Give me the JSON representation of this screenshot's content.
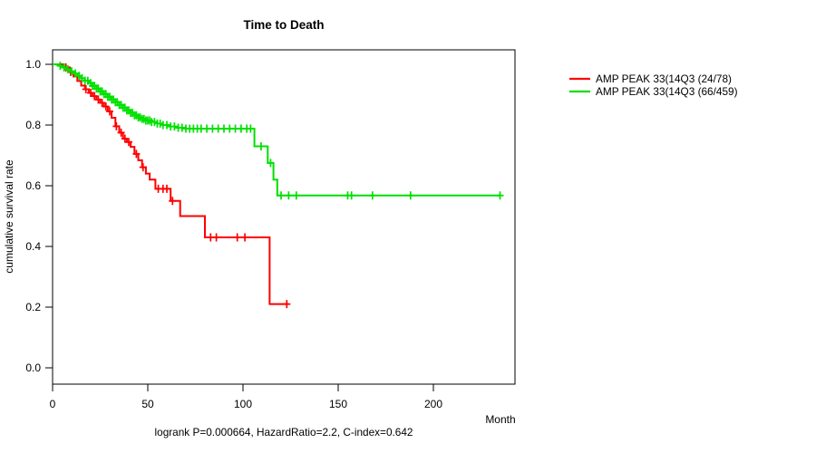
{
  "chart_data": {
    "type": "line",
    "subtype": "kaplan-meier-step",
    "title": "Time to Death",
    "xlabel": "Month",
    "ylabel": "cumulative survival rate",
    "footer": "logrank P=0.000664, HazardRatio=2.2, C-index=0.642",
    "xlim": [
      0,
      243
    ],
    "ylim": [
      0.0,
      1.0
    ],
    "xticks": [
      0,
      50,
      100,
      150,
      200
    ],
    "yticks": [
      0.0,
      0.2,
      0.4,
      0.6,
      0.8,
      1.0
    ],
    "grid": false,
    "legend_position": "right-outside",
    "axis_color": "#000000",
    "series": [
      {
        "name": "AMP PEAK 33(14Q3 (24/78)",
        "color": "#ff0000",
        "events": "24/78",
        "steps": [
          [
            0,
            1.0
          ],
          [
            6,
            0.99
          ],
          [
            9,
            0.975
          ],
          [
            11,
            0.96
          ],
          [
            13,
            0.945
          ],
          [
            15,
            0.93
          ],
          [
            17,
            0.918
          ],
          [
            19,
            0.906
          ],
          [
            21,
            0.895
          ],
          [
            23,
            0.884
          ],
          [
            25,
            0.873
          ],
          [
            27,
            0.861
          ],
          [
            29,
            0.845
          ],
          [
            31,
            0.824
          ],
          [
            33,
            0.796
          ],
          [
            35,
            0.775
          ],
          [
            37,
            0.755
          ],
          [
            39,
            0.744
          ],
          [
            41,
            0.728
          ],
          [
            43,
            0.705
          ],
          [
            45,
            0.684
          ],
          [
            47,
            0.661
          ],
          [
            49,
            0.64
          ],
          [
            51,
            0.62
          ],
          [
            54,
            0.59
          ],
          [
            62,
            0.55
          ],
          [
            67,
            0.5
          ],
          [
            80,
            0.43
          ],
          [
            114,
            0.21
          ]
        ],
        "end_month": 123.8,
        "censor_months": [
          7,
          9.5,
          17.5,
          20,
          22,
          24,
          26,
          28,
          30,
          33.5,
          36,
          38,
          40,
          44,
          47.5,
          55.5,
          58,
          60,
          63,
          83,
          86,
          97,
          101,
          123
        ]
      },
      {
        "name": "AMP PEAK 33(14Q3 (66/459)",
        "color": "#00e000",
        "events": "66/459",
        "steps": [
          [
            0,
            1.0
          ],
          [
            3,
            0.995
          ],
          [
            5,
            0.99
          ],
          [
            7,
            0.984
          ],
          [
            9,
            0.977
          ],
          [
            11,
            0.97
          ],
          [
            13,
            0.962
          ],
          [
            15,
            0.954
          ],
          [
            17,
            0.946
          ],
          [
            19,
            0.938
          ],
          [
            21,
            0.929
          ],
          [
            23,
            0.92
          ],
          [
            25,
            0.911
          ],
          [
            27,
            0.902
          ],
          [
            29,
            0.893
          ],
          [
            31,
            0.884
          ],
          [
            33,
            0.875
          ],
          [
            35,
            0.866
          ],
          [
            37,
            0.857
          ],
          [
            39,
            0.848
          ],
          [
            41,
            0.84
          ],
          [
            43,
            0.832
          ],
          [
            45,
            0.825
          ],
          [
            47,
            0.82
          ],
          [
            49,
            0.815
          ],
          [
            52,
            0.81
          ],
          [
            55,
            0.805
          ],
          [
            58,
            0.8
          ],
          [
            61,
            0.795
          ],
          [
            65,
            0.791
          ],
          [
            70,
            0.788
          ],
          [
            106,
            0.73
          ],
          [
            113,
            0.675
          ],
          [
            116,
            0.62
          ],
          [
            118,
            0.568
          ]
        ],
        "end_month": 235.5,
        "censor_months": [
          4,
          6,
          8,
          10,
          12,
          14,
          15.5,
          17,
          18.5,
          20,
          21,
          22,
          23,
          24,
          25,
          26,
          27,
          28,
          29,
          30,
          31,
          32,
          33,
          34,
          35,
          36,
          37,
          38,
          39,
          40,
          41,
          42,
          43,
          44,
          45,
          46,
          47,
          48,
          49,
          50,
          51,
          52,
          53.5,
          55,
          56.5,
          58,
          60,
          62,
          64,
          66,
          68,
          70,
          72,
          74,
          76,
          78,
          81,
          84,
          87,
          90,
          93,
          96,
          99,
          102,
          104,
          109.5,
          114.5,
          120,
          124,
          128,
          155,
          157,
          168,
          188,
          235
        ]
      }
    ]
  }
}
